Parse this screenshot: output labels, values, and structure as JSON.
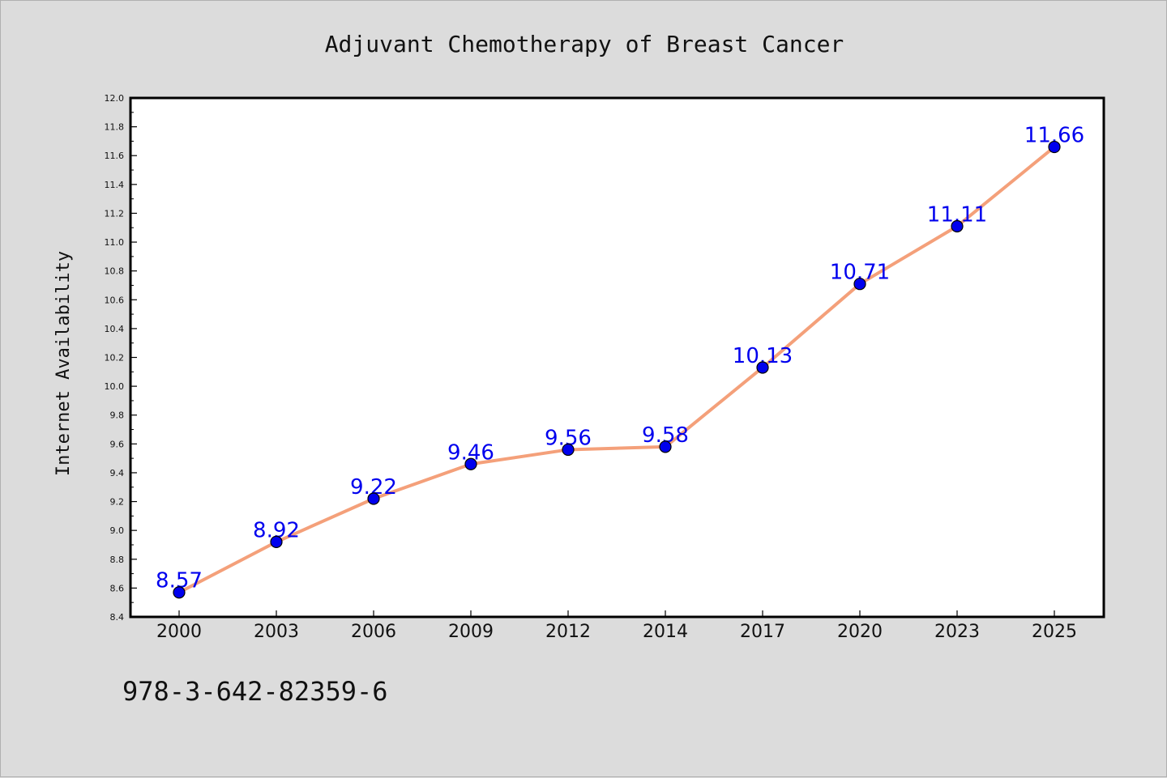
{
  "chart_data": {
    "type": "line",
    "title": "Adjuvant Chemotherapy of Breast Cancer",
    "xlabel": "",
    "ylabel": "Internet Availability",
    "categories": [
      "2000",
      "2003",
      "2006",
      "2009",
      "2012",
      "2014",
      "2017",
      "2020",
      "2023",
      "2025"
    ],
    "series": [
      {
        "values": [
          8.57,
          8.92,
          9.22,
          9.46,
          9.56,
          9.58,
          10.13,
          10.71,
          11.11,
          11.66
        ],
        "data_labels": [
          "8.57",
          "8.92",
          "9.22",
          "9.46",
          "9.56",
          "9.58",
          "10.13",
          "10.71",
          "11.11",
          "11.66"
        ],
        "line_color": "#f4a07a",
        "marker_color": "#0000ee"
      }
    ],
    "ylim": [
      8.4,
      12.0
    ],
    "yticks": [
      "8.4",
      "8.6",
      "8.8",
      "9.0",
      "9.2",
      "9.4",
      "9.6",
      "9.8",
      "10.0",
      "10.2",
      "10.4",
      "10.6",
      "10.8",
      "11.0",
      "11.2",
      "11.4",
      "11.6",
      "11.8",
      "12.0"
    ],
    "grid": false,
    "legend": "none",
    "label_color": "#0000ee"
  },
  "footer": {
    "isbn": "978-3-642-82359-6"
  }
}
